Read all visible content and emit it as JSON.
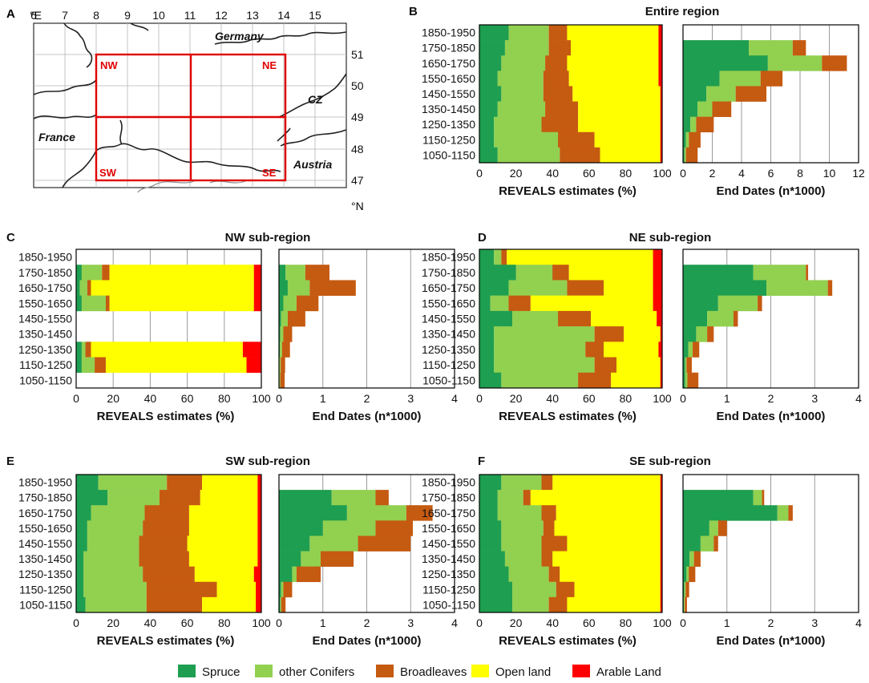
{
  "colors": {
    "spruce": "#1e9e50",
    "other_conifers": "#92d050",
    "broadleaves": "#c55a11",
    "open_land": "#ffff00",
    "arable_land": "#ff0000",
    "map_frame": "#e00000"
  },
  "legend": [
    "Spruce",
    "other Conifers",
    "Broadleaves",
    "Open land",
    "Arable Land"
  ],
  "map": {
    "label": "A",
    "x_ticks": [
      "6",
      "7",
      "8",
      "9",
      "10",
      "11",
      "12",
      "13",
      "14",
      "15"
    ],
    "x_unit": "°E",
    "y_ticks": [
      "51",
      "50",
      "49",
      "48",
      "47"
    ],
    "y_unit": "°N",
    "quadrant_labels": [
      "NW",
      "NE",
      "SW",
      "SE"
    ],
    "country_labels": [
      "Germany",
      "CZ",
      "France",
      "Austria"
    ]
  },
  "chart_data": [
    {
      "type": "bar",
      "label": "B",
      "title": "Entire region",
      "categories": [
        "1850-1950",
        "1750-1850",
        "1650-1750",
        "1550-1650",
        "1450-1550",
        "1350-1450",
        "1250-1350",
        "1150-1250",
        "1050-1150"
      ],
      "xlabel": "REVEALS estimates (%)",
      "xlim": [
        0,
        100
      ],
      "xticks": [
        "0",
        "20",
        "40",
        "60",
        "80",
        "100"
      ],
      "stacked": true,
      "series": [
        {
          "name": "Spruce",
          "values": [
            16,
            14,
            12,
            10,
            12,
            10,
            8,
            8,
            10
          ]
        },
        {
          "name": "other Conifers",
          "values": [
            22,
            24,
            24,
            25,
            23,
            26,
            26,
            35,
            34
          ]
        },
        {
          "name": "Broadleaves",
          "values": [
            10,
            12,
            12,
            14,
            16,
            18,
            20,
            20,
            22
          ]
        },
        {
          "name": "Open land",
          "values": [
            50,
            48,
            50,
            49,
            48,
            45,
            45,
            36,
            33
          ]
        },
        {
          "name": "Arable Land",
          "values": [
            2,
            2,
            2,
            2,
            1,
            1,
            1,
            1,
            1
          ]
        }
      ]
    },
    {
      "type": "bar",
      "label": "B",
      "title": "",
      "categories": [
        "1850-1950",
        "1750-1850",
        "1650-1750",
        "1550-1650",
        "1450-1550",
        "1350-1450",
        "1250-1350",
        "1150-1250",
        "1050-1150"
      ],
      "xlabel": "End Dates (n*1000)",
      "xlim": [
        0,
        12
      ],
      "xticks": [
        "0",
        "2",
        "4",
        "6",
        "8",
        "10",
        "12"
      ],
      "stacked": true,
      "series": [
        {
          "name": "Spruce",
          "values": [
            0,
            4.5,
            5.8,
            2.5,
            1.6,
            1.0,
            0.5,
            0.2,
            0.1
          ]
        },
        {
          "name": "other Conifers",
          "values": [
            0,
            3.0,
            3.7,
            2.8,
            2.0,
            1.0,
            0.4,
            0.2,
            0.1
          ]
        },
        {
          "name": "Broadleaves",
          "values": [
            0,
            0.9,
            1.7,
            1.5,
            2.1,
            1.3,
            1.2,
            0.8,
            0.8
          ]
        }
      ]
    },
    {
      "type": "bar",
      "label": "C",
      "title": "NW sub-region",
      "categories": [
        "1850-1950",
        "1750-1850",
        "1650-1750",
        "1550-1650",
        "1450-1550",
        "1350-1450",
        "1250-1350",
        "1150-1250",
        "1050-1150"
      ],
      "xlabel": "REVEALS estimates (%)",
      "xlim": [
        0,
        100
      ],
      "xticks": [
        "0",
        "20",
        "40",
        "60",
        "80",
        "100"
      ],
      "stacked": true,
      "series": [
        {
          "name": "Spruce",
          "values": [
            0,
            3,
            2,
            3,
            0,
            0,
            3,
            3,
            0
          ]
        },
        {
          "name": "other Conifers",
          "values": [
            0,
            11,
            4,
            13,
            0,
            0,
            2,
            7,
            0
          ]
        },
        {
          "name": "Broadleaves",
          "values": [
            0,
            4,
            2,
            2,
            0,
            0,
            3,
            6,
            0
          ]
        },
        {
          "name": "Open land",
          "values": [
            0,
            78,
            88,
            78,
            0,
            0,
            82,
            76,
            0
          ]
        },
        {
          "name": "Arable Land",
          "values": [
            0,
            4,
            4,
            4,
            0,
            0,
            10,
            8,
            0
          ]
        }
      ]
    },
    {
      "type": "bar",
      "label": "C",
      "title": "",
      "categories": [
        "1850-1950",
        "1750-1850",
        "1650-1750",
        "1550-1650",
        "1450-1550",
        "1350-1450",
        "1250-1350",
        "1150-1250",
        "1050-1150"
      ],
      "xlabel": "End Dates (n*1000)",
      "xlim": [
        0,
        4
      ],
      "xticks": [
        "0",
        "1",
        "2",
        "3",
        "4"
      ],
      "stacked": true,
      "series": [
        {
          "name": "Spruce",
          "values": [
            0,
            0.15,
            0.2,
            0.1,
            0.05,
            0.03,
            0.02,
            0.01,
            0.01
          ]
        },
        {
          "name": "other Conifers",
          "values": [
            0,
            0.45,
            0.5,
            0.3,
            0.15,
            0.07,
            0.05,
            0.03,
            0.02
          ]
        },
        {
          "name": "Broadleaves",
          "values": [
            0,
            0.55,
            1.05,
            0.5,
            0.4,
            0.2,
            0.18,
            0.1,
            0.1
          ]
        }
      ]
    },
    {
      "type": "bar",
      "label": "D",
      "title": "NE sub-region",
      "categories": [
        "1850-1950",
        "1750-1850",
        "1650-1750",
        "1550-1650",
        "1450-1550",
        "1350-1450",
        "1250-1350",
        "1150-1250",
        "1050-1150"
      ],
      "xlabel": "REVEALS estimates (%)",
      "xlim": [
        0,
        100
      ],
      "xticks": [
        "0",
        "20",
        "40",
        "60",
        "80",
        "100"
      ],
      "stacked": true,
      "series": [
        {
          "name": "Spruce",
          "values": [
            8,
            20,
            16,
            6,
            18,
            8,
            8,
            8,
            12
          ]
        },
        {
          "name": "other Conifers",
          "values": [
            4,
            20,
            32,
            10,
            25,
            55,
            50,
            55,
            42
          ]
        },
        {
          "name": "Broadleaves",
          "values": [
            3,
            9,
            20,
            12,
            18,
            16,
            10,
            12,
            18
          ]
        },
        {
          "name": "Open land",
          "values": [
            80,
            46,
            27,
            67,
            36,
            20,
            30,
            24,
            27
          ]
        },
        {
          "name": "Arable Land",
          "values": [
            5,
            5,
            5,
            5,
            3,
            1,
            2,
            1,
            1
          ]
        }
      ]
    },
    {
      "type": "bar",
      "label": "D",
      "title": "",
      "categories": [
        "1850-1950",
        "1750-1850",
        "1650-1750",
        "1550-1650",
        "1450-1550",
        "1350-1450",
        "1250-1350",
        "1150-1250",
        "1050-1150"
      ],
      "xlabel": "End Dates (n*1000)",
      "xlim": [
        0,
        4
      ],
      "xticks": [
        "0",
        "1",
        "2",
        "3",
        "4"
      ],
      "stacked": true,
      "series": [
        {
          "name": "Spruce",
          "values": [
            0,
            1.6,
            1.9,
            0.8,
            0.55,
            0.3,
            0.12,
            0.05,
            0.05
          ]
        },
        {
          "name": "other Conifers",
          "values": [
            0,
            1.2,
            1.4,
            0.9,
            0.6,
            0.25,
            0.1,
            0.03,
            0.05
          ]
        },
        {
          "name": "Broadleaves",
          "values": [
            0,
            0.05,
            0.1,
            0.1,
            0.1,
            0.15,
            0.15,
            0.12,
            0.25
          ]
        }
      ]
    },
    {
      "type": "bar",
      "label": "E",
      "title": "SW sub-region",
      "categories": [
        "1850-1950",
        "1750-1850",
        "1650-1750",
        "1550-1650",
        "1450-1550",
        "1350-1450",
        "1250-1350",
        "1150-1250",
        "1050-1150"
      ],
      "xlabel": "REVEALS estimates (%)",
      "xlim": [
        0,
        100
      ],
      "xticks": [
        "0",
        "20",
        "40",
        "60",
        "80",
        "100"
      ],
      "stacked": true,
      "series": [
        {
          "name": "Spruce",
          "values": [
            12,
            17,
            8,
            6,
            6,
            4,
            4,
            4,
            5
          ]
        },
        {
          "name": "other Conifers",
          "values": [
            37,
            28,
            29,
            30,
            28,
            30,
            32,
            34,
            33
          ]
        },
        {
          "name": "Broadleaves",
          "values": [
            19,
            22,
            24,
            25,
            26,
            27,
            28,
            38,
            30
          ]
        },
        {
          "name": "Open land",
          "values": [
            30,
            31,
            37,
            37,
            38,
            37,
            32,
            21,
            29
          ]
        },
        {
          "name": "Arable Land",
          "values": [
            2,
            2,
            2,
            2,
            2,
            2,
            4,
            3,
            3
          ]
        }
      ]
    },
    {
      "type": "bar",
      "label": "E",
      "title": "",
      "categories": [
        "1850-1950",
        "1750-1850",
        "1650-1750",
        "1550-1650",
        "1450-1550",
        "1350-1450",
        "1250-1350",
        "1150-1250",
        "1050-1150"
      ],
      "xlabel": "End Dates (n*1000)",
      "xlim": [
        0,
        4
      ],
      "xticks": [
        "0",
        "1",
        "2",
        "3",
        "4"
      ],
      "stacked": true,
      "series": [
        {
          "name": "Spruce",
          "values": [
            0,
            1.2,
            1.55,
            1.0,
            0.7,
            0.5,
            0.3,
            0.05,
            0.03
          ]
        },
        {
          "name": "other Conifers",
          "values": [
            0,
            1.0,
            1.35,
            1.2,
            1.1,
            0.45,
            0.1,
            0.05,
            0.02
          ]
        },
        {
          "name": "Broadleaves",
          "values": [
            0,
            0.3,
            0.6,
            0.85,
            1.2,
            0.75,
            0.55,
            0.2,
            0.1
          ]
        }
      ]
    },
    {
      "type": "bar",
      "label": "F",
      "title": "SE sub-region",
      "categories": [
        "1850-1950",
        "1750-1850",
        "1650-1750",
        "1550-1650",
        "1450-1550",
        "1350-1450",
        "1250-1350",
        "1150-1250",
        "1050-1150"
      ],
      "xlabel": "REVEALS estimates (%)",
      "xlim": [
        0,
        100
      ],
      "xticks": [
        "0",
        "20",
        "40",
        "60",
        "80",
        "100"
      ],
      "stacked": true,
      "series": [
        {
          "name": "Spruce",
          "values": [
            12,
            10,
            10,
            12,
            12,
            14,
            16,
            18,
            18
          ]
        },
        {
          "name": "other Conifers",
          "values": [
            22,
            14,
            24,
            23,
            22,
            20,
            22,
            24,
            20
          ]
        },
        {
          "name": "Broadleaves",
          "values": [
            6,
            4,
            8,
            6,
            14,
            6,
            6,
            10,
            10
          ]
        },
        {
          "name": "Open land",
          "values": [
            59,
            71,
            57,
            58,
            51,
            59,
            55,
            47,
            51
          ]
        },
        {
          "name": "Arable Land",
          "values": [
            1,
            1,
            1,
            1,
            1,
            1,
            1,
            1,
            1
          ]
        }
      ]
    },
    {
      "type": "bar",
      "label": "F",
      "title": "",
      "categories": [
        "1850-1950",
        "1750-1850",
        "1650-1750",
        "1550-1650",
        "1450-1550",
        "1350-1450",
        "1250-1350",
        "1150-1250",
        "1050-1150"
      ],
      "xlabel": "End Dates (n*1000)",
      "xlim": [
        0,
        4
      ],
      "xticks": [
        "0",
        "1",
        "2",
        "3",
        "4"
      ],
      "stacked": true,
      "series": [
        {
          "name": "Spruce",
          "values": [
            0,
            1.6,
            2.15,
            0.6,
            0.4,
            0.15,
            0.08,
            0.03,
            0.02
          ]
        },
        {
          "name": "other Conifers",
          "values": [
            0,
            0.2,
            0.25,
            0.2,
            0.3,
            0.1,
            0.05,
            0.03,
            0.02
          ]
        },
        {
          "name": "Broadleaves",
          "values": [
            0,
            0.05,
            0.1,
            0.2,
            0.1,
            0.15,
            0.15,
            0.08,
            0.05
          ]
        }
      ]
    }
  ]
}
